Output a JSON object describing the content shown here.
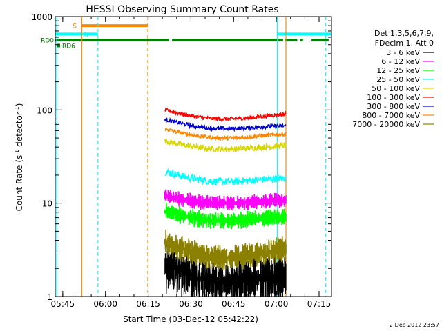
{
  "chart_data": {
    "type": "line",
    "title": "HESSI Observing Summary Count Rates",
    "xlabel": "Start Time (03-Dec-12 05:42:22)",
    "ylabel_main": "Count Rate (s",
    "ylabel_sup1": "-1",
    "ylabel_mid": " detector",
    "ylabel_sup2": "-1",
    "ylabel_end": ")",
    "y_scale": "log",
    "ylim": [
      1,
      1000
    ],
    "xlim_minutes": [
      0,
      97
    ],
    "x_ticks": [
      {
        "minute": 2.633,
        "label": "05:45"
      },
      {
        "minute": 17.633,
        "label": "06:00"
      },
      {
        "minute": 32.633,
        "label": "06:15"
      },
      {
        "minute": 47.633,
        "label": "06:30"
      },
      {
        "minute": 62.633,
        "label": "06:45"
      },
      {
        "minute": 77.633,
        "label": "07:00"
      },
      {
        "minute": 92.633,
        "label": "07:15"
      }
    ],
    "y_ticks": [
      {
        "value": 1,
        "label": "1"
      },
      {
        "value": 10,
        "label": "10"
      },
      {
        "value": 100,
        "label": "100"
      },
      {
        "value": 1000,
        "label": "1000"
      }
    ],
    "legend_header": [
      "Det 1,3,5,6,7,9,",
      "FDecim 1, Att 0"
    ],
    "legend_position": "right",
    "timestamp": "2-Dec-2012 23:57",
    "gap_window_minutes": [
      38.5,
      81.0
    ],
    "series": [
      {
        "name": "3 - 6 keV",
        "color": "#000000",
        "start": 3.0,
        "end": 2.0,
        "mid": 1.4,
        "noise": 0.45
      },
      {
        "name": "6 - 12 keV",
        "color": "#ff00ff",
        "start": 14.0,
        "end": 11.5,
        "mid": 10.0,
        "noise": 0.12
      },
      {
        "name": "12 - 25 keV",
        "color": "#00ff00",
        "start": 10.0,
        "end": 7.5,
        "mid": 6.5,
        "noise": 0.14
      },
      {
        "name": "25 - 50 keV",
        "color": "#00ffff",
        "start": 27.0,
        "end": 20.0,
        "mid": 17.0,
        "noise": 0.08
      },
      {
        "name": "50 - 100 keV",
        "color": "#d8d800",
        "start": 55.0,
        "end": 45.0,
        "mid": 38.0,
        "noise": 0.06
      },
      {
        "name": "100 - 300 keV",
        "color": "#ff0000",
        "start": 120.0,
        "end": 100.0,
        "mid": 80.0,
        "noise": 0.04
      },
      {
        "name": "300 - 800 keV",
        "color": "#0000cc",
        "start": 95.0,
        "end": 72.0,
        "mid": 63.0,
        "noise": 0.04
      },
      {
        "name": "800 - 7000 keV",
        "color": "#ff8800",
        "start": 75.0,
        "end": 60.0,
        "mid": 50.0,
        "noise": 0.04
      },
      {
        "name": "7000 - 20000 keV",
        "color": "#8b8000",
        "start": 5.0,
        "end": 4.0,
        "mid": 2.6,
        "noise": 0.2
      }
    ],
    "state_bars": [
      {
        "label": "S",
        "color": "#ff8800",
        "value": 800,
        "segments": [
          [
            9.3,
            32.5
          ]
        ]
      },
      {
        "label": "N",
        "color": "#00ffff",
        "value": 650,
        "segments": [
          [
            0,
            15.0
          ],
          [
            78.0,
            97.0
          ]
        ]
      },
      {
        "label": "RD0",
        "color": "#008000",
        "value": 560,
        "segments": [
          [
            0,
            32.5
          ],
          [
            32.5,
            40.0
          ],
          [
            41.0,
            80.0
          ],
          [
            80.5,
            85.0
          ],
          [
            86.0,
            87.0
          ],
          [
            90.0,
            96.0
          ]
        ]
      },
      {
        "label": "RD6",
        "color": "#008000",
        "value": 490,
        "segments": []
      }
    ],
    "vertical_lines": [
      {
        "minute": 0.5,
        "color": "#00ffff",
        "style": "solid"
      },
      {
        "minute": 9.3,
        "color": "#ff8800",
        "style": "solid"
      },
      {
        "minute": 15.0,
        "color": "#00ffff",
        "style": "dashed"
      },
      {
        "minute": 32.5,
        "color": "#ff8800",
        "style": "dashed"
      },
      {
        "minute": 78.0,
        "color": "#00ffff",
        "style": "solid"
      },
      {
        "minute": 81.0,
        "color": "#ff8800",
        "style": "solid"
      },
      {
        "minute": 95.0,
        "color": "#00ffff",
        "style": "dashed"
      }
    ]
  }
}
